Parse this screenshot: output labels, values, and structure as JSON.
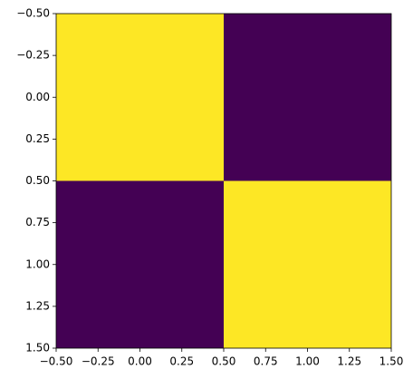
{
  "chart_data": {
    "type": "heatmap",
    "values": [
      [
        1,
        0
      ],
      [
        0,
        1
      ]
    ],
    "cmap_colors": [
      "#440154",
      "#fde725"
    ],
    "xlim": [
      -0.5,
      1.5
    ],
    "ylim": [
      1.5,
      -0.5
    ],
    "xticks": [
      {
        "value": -0.5,
        "label": "−0.50"
      },
      {
        "value": -0.25,
        "label": "−0.25"
      },
      {
        "value": 0,
        "label": "0.00"
      },
      0.25,
      {
        "value": 0.5,
        "label": "0.50"
      },
      0.75,
      {
        "value": 1,
        "label": "1.00"
      },
      1.25,
      {
        "value": 1.5,
        "label": "1.50"
      }
    ],
    "yticks": [
      {
        "value": -0.5,
        "label": "−0.50"
      },
      {
        "value": -0.25,
        "label": "−0.25"
      },
      {
        "value": 0,
        "label": "0.00"
      },
      0.25,
      {
        "value": 0.5,
        "label": "0.50"
      },
      0.75,
      {
        "value": 1,
        "label": "1.00"
      },
      1.25,
      {
        "value": 1.5,
        "label": "1.50"
      }
    ]
  }
}
